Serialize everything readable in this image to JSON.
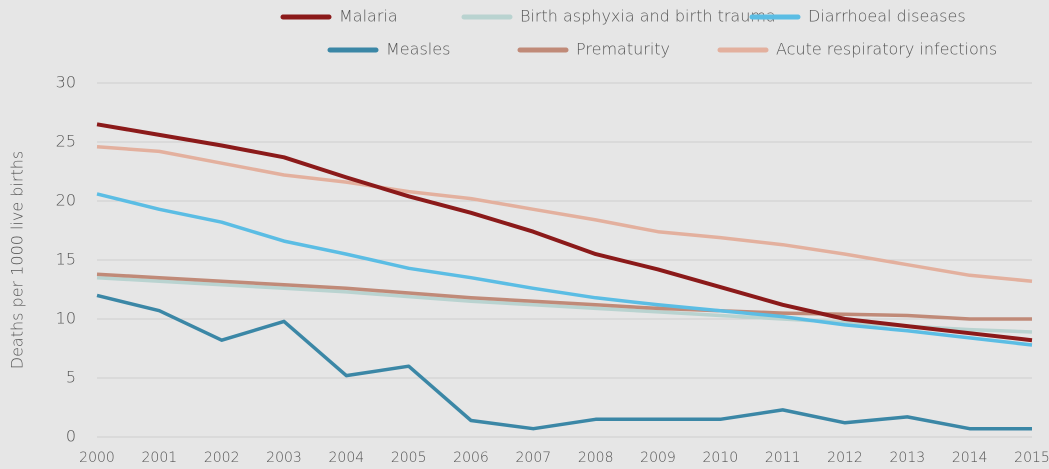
{
  "chart_data": {
    "type": "line",
    "y_label": "Deaths per 1000 live births",
    "x": [
      2000,
      2001,
      2002,
      2003,
      2004,
      2005,
      2006,
      2007,
      2008,
      2009,
      2010,
      2011,
      2012,
      2013,
      2014,
      2015
    ],
    "xlim": [
      2000,
      2015
    ],
    "xticks": [
      2000,
      2001,
      2002,
      2003,
      2004,
      2005,
      2006,
      2007,
      2008,
      2009,
      2010,
      2011,
      2012,
      2013,
      2014,
      2015
    ],
    "ylim": [
      0,
      30
    ],
    "yticks": [
      0,
      5,
      10,
      15,
      20,
      25,
      30
    ],
    "grid": true,
    "legend": "top",
    "series": [
      {
        "name": "Malaria",
        "color": "#8b1a1a",
        "values": [
          26.5,
          25.6,
          24.7,
          23.7,
          22.0,
          20.4,
          19.0,
          17.4,
          15.5,
          14.2,
          12.7,
          11.2,
          10.0,
          9.4,
          8.8,
          8.2
        ]
      },
      {
        "name": "Birth asphyxia and birth trauma",
        "color": "#b9d3d0",
        "values": [
          13.5,
          13.2,
          12.9,
          12.6,
          12.3,
          11.9,
          11.5,
          11.2,
          10.9,
          10.6,
          10.3,
          10.0,
          9.7,
          9.4,
          9.1,
          8.9
        ]
      },
      {
        "name": "Diarrhoeal diseases",
        "color": "#5bbde4",
        "values": [
          20.6,
          19.3,
          18.2,
          16.6,
          15.5,
          14.3,
          13.5,
          12.6,
          11.8,
          11.2,
          10.7,
          10.2,
          9.5,
          9.0,
          8.4,
          7.8
        ]
      },
      {
        "name": "Measles",
        "color": "#3b87a6",
        "values": [
          12.0,
          10.7,
          8.2,
          9.8,
          5.2,
          6.0,
          1.4,
          0.7,
          1.5,
          1.5,
          1.5,
          2.3,
          1.2,
          1.7,
          0.7,
          0.7
        ]
      },
      {
        "name": "Prematurity",
        "color": "#c08a78",
        "values": [
          13.8,
          13.5,
          13.2,
          12.9,
          12.6,
          12.2,
          11.8,
          11.5,
          11.2,
          10.9,
          10.7,
          10.5,
          10.4,
          10.3,
          10.0,
          10.0
        ]
      },
      {
        "name": "Acute respiratory infections",
        "color": "#e3b09e",
        "values": [
          24.6,
          24.2,
          23.2,
          22.2,
          21.6,
          20.8,
          20.2,
          19.3,
          18.4,
          17.4,
          16.9,
          16.3,
          15.5,
          14.6,
          13.7,
          13.2
        ]
      }
    ]
  }
}
